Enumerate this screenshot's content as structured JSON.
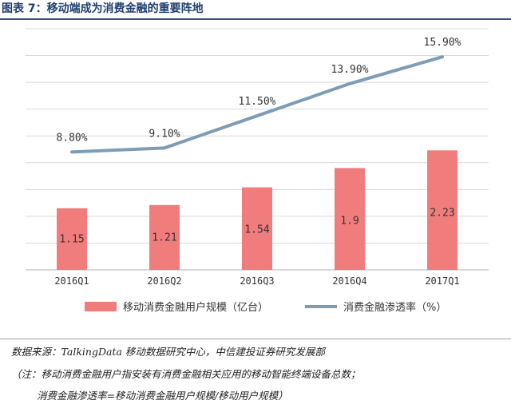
{
  "figure_title": "图表 7：移动端成为消费金融的重要阵地",
  "chart_data": {
    "type": "bar",
    "categories": [
      "2016Q1",
      "2016Q2",
      "2016Q3",
      "2016Q4",
      "2017Q1"
    ],
    "series": [
      {
        "name": "移动消费金融用户规模（亿台）",
        "type": "bar",
        "color": "#f07c7c",
        "values": [
          1.15,
          1.21,
          1.54,
          1.9,
          2.23
        ],
        "labels": [
          "1.15",
          "1.21",
          "1.54",
          "1.9",
          "2.23"
        ]
      },
      {
        "name": "消费金融渗透率（%）",
        "type": "line",
        "color": "#7f9cb5",
        "values": [
          8.8,
          9.1,
          11.5,
          13.9,
          15.9
        ],
        "labels": [
          "8.80%",
          "9.10%",
          "11.50%",
          "13.90%",
          "15.90%"
        ]
      }
    ],
    "bar_axis_range": [
      0,
      4.5
    ],
    "line_axis_range": [
      0,
      18
    ],
    "grid": true,
    "legend_position": "bottom"
  },
  "source": "数据来源：TalkingData 移动数据研究中心，中信建投证券研究发展部",
  "note_line1": "（注：移动消费金融用户指安装有消费金融相关应用的移动智能终端设备总数；",
  "note_line2": "消费金融渗透率=移动消费金融用户规模/移动用户规模）"
}
